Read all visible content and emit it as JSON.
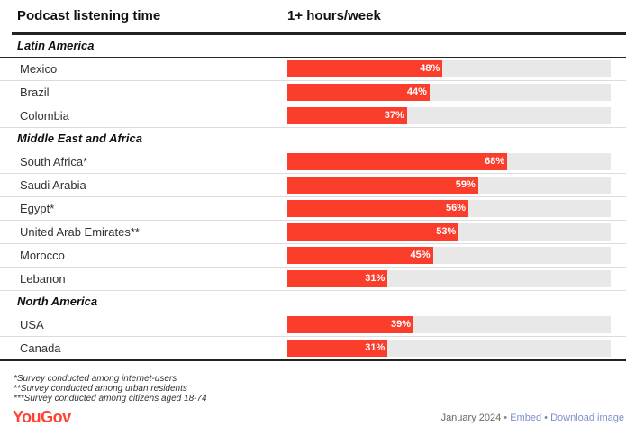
{
  "header": {
    "col1": "Podcast listening time",
    "col2": "1+ hours/week"
  },
  "chart_data": {
    "type": "bar",
    "xlim": [
      0,
      100
    ],
    "groups": [
      {
        "name": "Latin America",
        "items": [
          {
            "label": "Mexico",
            "value": 48,
            "value_label": "48%"
          },
          {
            "label": "Brazil",
            "value": 44,
            "value_label": "44%"
          },
          {
            "label": "Colombia",
            "value": 37,
            "value_label": "37%"
          }
        ]
      },
      {
        "name": "Middle East and Africa",
        "items": [
          {
            "label": "South Africa*",
            "value": 68,
            "value_label": "68%"
          },
          {
            "label": "Saudi Arabia",
            "value": 59,
            "value_label": "59%"
          },
          {
            "label": "Egypt*",
            "value": 56,
            "value_label": "56%"
          },
          {
            "label": "United Arab Emirates**",
            "value": 53,
            "value_label": "53%"
          },
          {
            "label": "Morocco",
            "value": 45,
            "value_label": "45%"
          },
          {
            "label": "Lebanon",
            "value": 31,
            "value_label": "31%"
          }
        ]
      },
      {
        "name": "North America",
        "items": [
          {
            "label": "USA",
            "value": 39,
            "value_label": "39%"
          },
          {
            "label": "Canada",
            "value": 31,
            "value_label": "31%"
          }
        ]
      }
    ],
    "colors": {
      "bar": "#fb3d2c",
      "track": "#e8e8e8"
    }
  },
  "notes": [
    "*Survey conducted among internet-users",
    "**Survey conducted among urban residents",
    "***Survey conducted among citizens aged 18-74"
  ],
  "footer": {
    "logo": "YouGov",
    "date": "January 2024",
    "embed": "Embed",
    "download": "Download image",
    "separator": "•"
  }
}
